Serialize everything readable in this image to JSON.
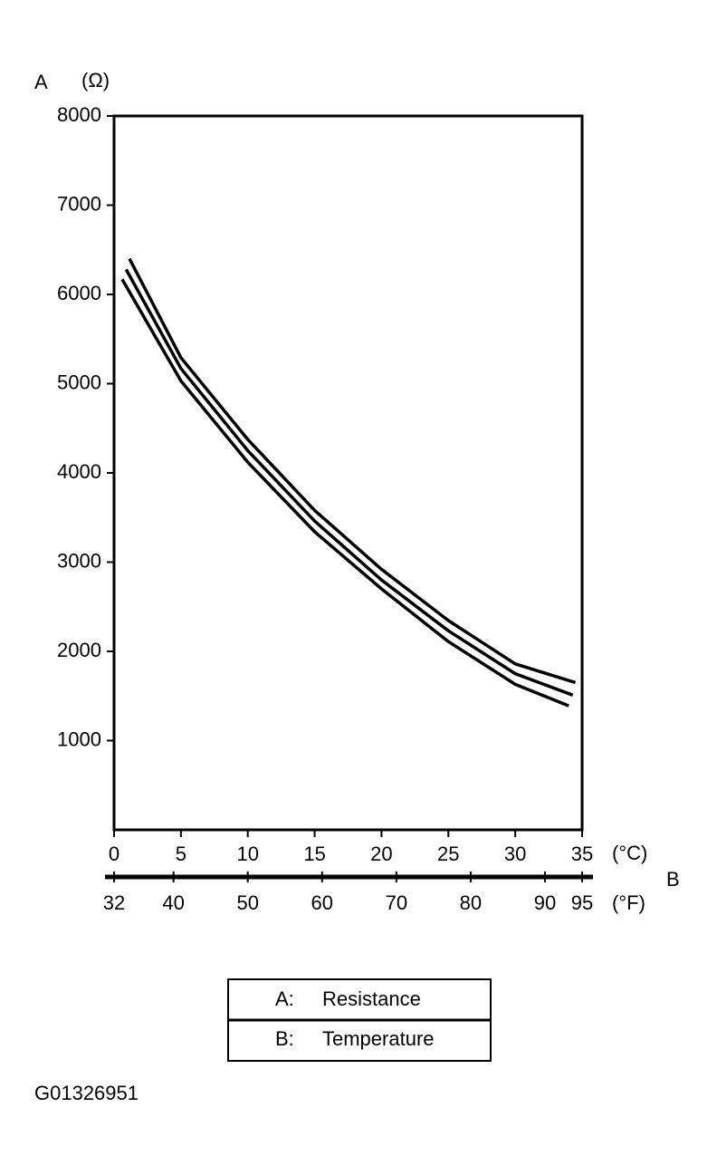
{
  "chart_data": {
    "type": "line",
    "y_letter": "A",
    "y_unit": "(Ω)",
    "x_letter": "B",
    "x_unit": "(°C)",
    "x2_unit": "(°F)",
    "xlim": [
      0,
      35
    ],
    "xticks": [
      0,
      5,
      10,
      15,
      20,
      25,
      30,
      35
    ],
    "x2lim": [
      32,
      95
    ],
    "x2ticks": [
      32,
      40,
      50,
      60,
      70,
      80,
      90,
      95
    ],
    "ylim": [
      0,
      8000
    ],
    "yticks": [
      1000,
      2000,
      3000,
      4000,
      5000,
      6000,
      7000,
      8000
    ],
    "series": [
      {
        "color": "#000000",
        "x": [
          1.15,
          5,
          10,
          15,
          20,
          25,
          30,
          34.5
        ],
        "values": [
          6400,
          5290,
          4375,
          3580,
          2920,
          2345,
          1860,
          1650
        ]
      },
      {
        "color": "#000000",
        "x": [
          0.9,
          5,
          10,
          15,
          20,
          25,
          30,
          34.3
        ],
        "values": [
          6280,
          5170,
          4250,
          3460,
          2800,
          2230,
          1750,
          1510
        ]
      },
      {
        "color": "#000000",
        "x": [
          0.6,
          5,
          10,
          15,
          20,
          25,
          30,
          34
        ],
        "values": [
          6170,
          5030,
          4120,
          3340,
          2700,
          2110,
          1630,
          1390
        ]
      }
    ],
    "legend_table": [
      {
        "key": "A:",
        "label": "Resistance"
      },
      {
        "key": "B:",
        "label": "Temperature"
      }
    ],
    "figure_id": "G01326951"
  }
}
